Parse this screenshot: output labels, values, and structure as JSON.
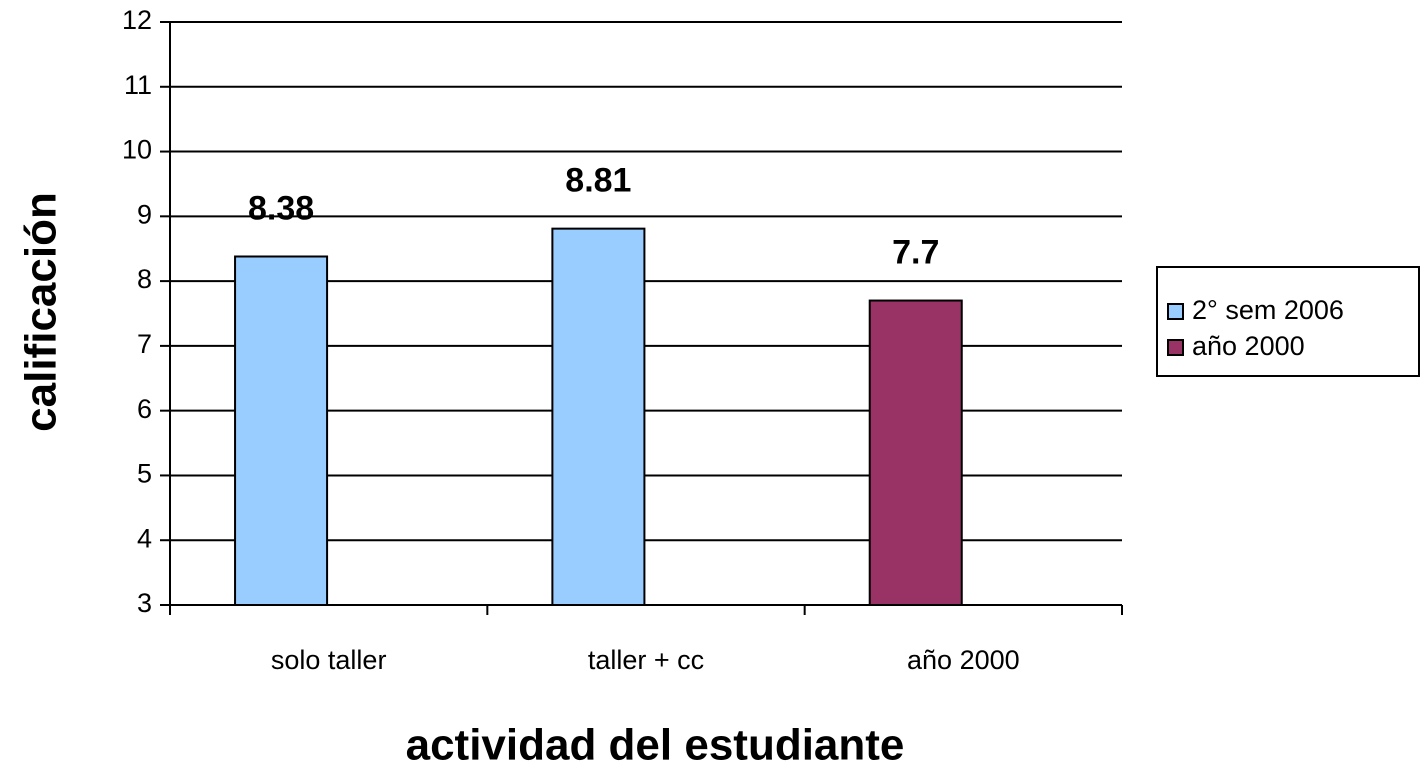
{
  "chart_data": {
    "type": "bar",
    "x_label": "actividad del estudiante",
    "y_label": "calificación",
    "categories": [
      "solo taller",
      "taller + cc",
      "año 2000"
    ],
    "series": [
      {
        "name": "2° sem 2006",
        "color": "#99ccff",
        "values": [
          8.38,
          8.81,
          null
        ]
      },
      {
        "name": "año 2000",
        "color": "#993366",
        "values": [
          null,
          null,
          7.7
        ]
      }
    ],
    "ylim": [
      3,
      12
    ],
    "yticks": [
      3,
      4,
      5,
      6,
      7,
      8,
      9,
      10,
      11,
      12
    ],
    "grid": true,
    "legend": "right"
  }
}
